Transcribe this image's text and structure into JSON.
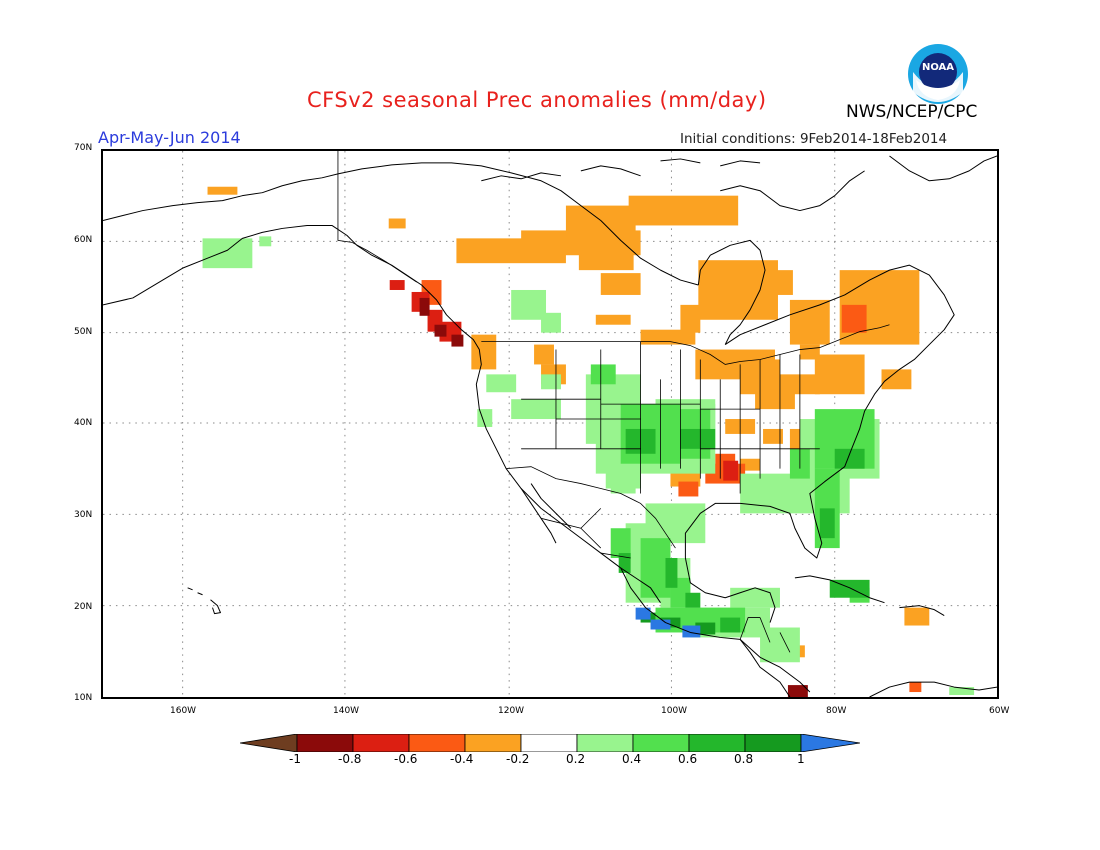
{
  "title": "CFSv2 seasonal Prec anomalies (mm/day)",
  "period": "Apr-May-Jun 2014",
  "initial_conditions": "Initial conditions: 9Feb2014-18Feb2014",
  "agency": "NWS/NCEP/CPC",
  "logo_text": "NOAA",
  "lat_labels": [
    "70N",
    "60N",
    "50N",
    "40N",
    "30N",
    "20N",
    "10N"
  ],
  "lon_labels": [
    "160W",
    "140W",
    "120W",
    "100W",
    "80W",
    "60W"
  ],
  "colorbar": {
    "labels": [
      "-1",
      "-0.8",
      "-0.6",
      "-0.4",
      "-0.2",
      "0.2",
      "0.4",
      "0.6",
      "0.8",
      "1"
    ],
    "colors": [
      "#8b0a0a",
      "#dc1f12",
      "#fb5a14",
      "#fba222",
      "#ffffff",
      "#98f48e",
      "#52e04e",
      "#24b72c",
      "#159a1f"
    ],
    "under_color": "#6e3d20",
    "over_color": "#2b78e2"
  },
  "colors": {
    "orange": "#fba222",
    "red_orange": "#fb5a14",
    "red": "#dc1f12",
    "dark_red": "#8b0a0a",
    "light_green": "#98f48e",
    "green": "#52e04e",
    "mid_green": "#24b72c",
    "dark_green": "#159a1f",
    "blue": "#2b78e2"
  }
}
